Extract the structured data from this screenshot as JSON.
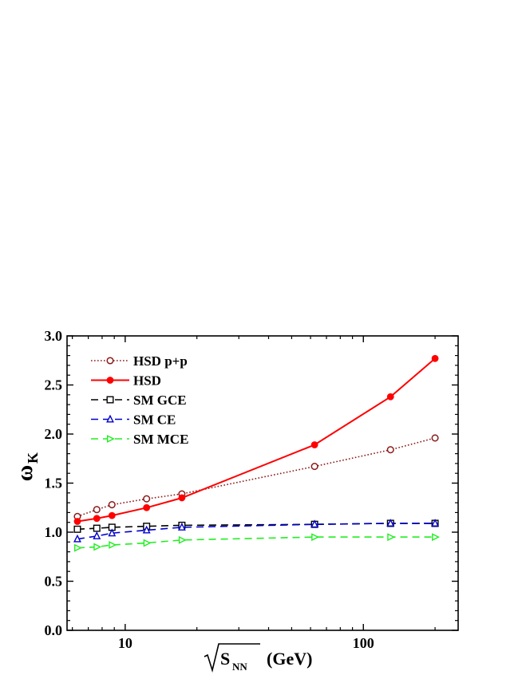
{
  "chart_data": {
    "type": "line",
    "xlabel": {
      "main": "S",
      "sub": "NN",
      "unit": "(GeV)"
    },
    "ylabel": {
      "main": "ω",
      "sub": "K"
    },
    "x_scale": "log",
    "xlim": [
      5.7,
      250
    ],
    "ylim": [
      0,
      3.0
    ],
    "x_ticks": [
      10,
      100
    ],
    "x_tick_labels": [
      "10",
      "100"
    ],
    "y_ticks": [
      0,
      0.5,
      1.0,
      1.5,
      2.0,
      2.5,
      3.0
    ],
    "y_tick_labels": [
      "0.0",
      "0.5",
      "1.0",
      "1.5",
      "2.0",
      "2.5",
      "3.0"
    ],
    "legend_position": "top-left",
    "grid": false,
    "series": [
      {
        "name": "HSD p+p",
        "color": "#8B1A1A",
        "dash": "dotted",
        "marker": "circle-open",
        "x": [
          6.3,
          7.6,
          8.8,
          12.3,
          17.3,
          62.4,
          130,
          200
        ],
        "y": [
          1.16,
          1.23,
          1.28,
          1.34,
          1.39,
          1.67,
          1.84,
          1.96
        ]
      },
      {
        "name": "HSD",
        "color": "#FF0000",
        "dash": "solid",
        "marker": "circle-filled",
        "x": [
          6.3,
          7.6,
          8.8,
          12.3,
          17.3,
          62.4,
          130,
          200
        ],
        "y": [
          1.11,
          1.14,
          1.17,
          1.25,
          1.35,
          1.89,
          2.38,
          2.77
        ]
      },
      {
        "name": "SM GCE",
        "color": "#000000",
        "dash": "dashed",
        "marker": "square-open",
        "x": [
          6.3,
          7.6,
          8.8,
          12.3,
          17.3,
          62.4,
          130,
          200
        ],
        "y": [
          1.03,
          1.04,
          1.05,
          1.06,
          1.07,
          1.08,
          1.09,
          1.09
        ]
      },
      {
        "name": "SM CE",
        "color": "#0000CC",
        "dash": "dashed",
        "marker": "triangle-up-open",
        "x": [
          6.3,
          7.6,
          8.8,
          12.3,
          17.3,
          62.4,
          130,
          200
        ],
        "y": [
          0.93,
          0.96,
          0.99,
          1.02,
          1.05,
          1.08,
          1.09,
          1.09
        ]
      },
      {
        "name": "SM MCE",
        "color": "#22EE22",
        "dash": "dashed",
        "marker": "triangle-right-open",
        "x": [
          6.3,
          7.6,
          8.8,
          12.3,
          17.3,
          62.4,
          130,
          200
        ],
        "y": [
          0.84,
          0.85,
          0.87,
          0.89,
          0.92,
          0.95,
          0.95,
          0.95
        ]
      }
    ]
  }
}
